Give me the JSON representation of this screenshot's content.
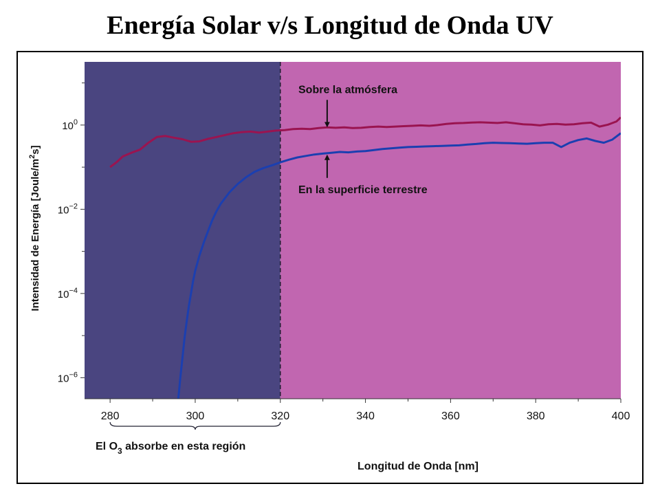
{
  "page": {
    "title": "Energía Solar v/s Longitud de Onda UV"
  },
  "chart_data": {
    "type": "line",
    "title": "Energía Solar v/s Longitud de Onda UV",
    "xlabel": "Longitud de Onda [nm]",
    "ylabel": {
      "prefix": "Intensidad de Energía [Joule/m",
      "sup": "2",
      "suffix": "s]"
    },
    "xlim": [
      274,
      400
    ],
    "ylim_log10": [
      -6.5,
      1.5
    ],
    "y_scale": "log",
    "grid": false,
    "x_ticks": [
      280,
      300,
      320,
      340,
      360,
      380,
      400
    ],
    "y_ticks": [
      {
        "base": "10",
        "exp": "0",
        "log10": 0
      },
      {
        "base": "10",
        "exp": "−2",
        "log10": -2
      },
      {
        "base": "10",
        "exp": "−4",
        "log10": -4
      },
      {
        "base": "10",
        "exp": "−6",
        "log10": -6
      }
    ],
    "regions": [
      {
        "from": 274,
        "to": 320,
        "color": "#4a4580"
      },
      {
        "from": 320,
        "to": 400,
        "color": "#c166b0"
      }
    ],
    "divider_x": 320,
    "series": [
      {
        "color": "#9a1450",
        "x": [
          280,
          281.5,
          283,
          285,
          287,
          289,
          291,
          293,
          295,
          297,
          299,
          301,
          303,
          305,
          307,
          309,
          311,
          313,
          315,
          317,
          319,
          321,
          323,
          325,
          327,
          329,
          331,
          333,
          335,
          337,
          339,
          341,
          343,
          345,
          347,
          349,
          351,
          353,
          355,
          357,
          359,
          361,
          363,
          365,
          367,
          369,
          371,
          373,
          375,
          377,
          379,
          381,
          383,
          385,
          387,
          389,
          391,
          393,
          395,
          397,
          399,
          400
        ],
        "y": [
          0.1,
          0.13,
          0.18,
          0.22,
          0.26,
          0.38,
          0.52,
          0.55,
          0.5,
          0.46,
          0.4,
          0.41,
          0.47,
          0.52,
          0.58,
          0.64,
          0.68,
          0.7,
          0.66,
          0.7,
          0.74,
          0.76,
          0.8,
          0.82,
          0.8,
          0.85,
          0.88,
          0.86,
          0.88,
          0.85,
          0.86,
          0.9,
          0.92,
          0.9,
          0.92,
          0.94,
          0.96,
          0.98,
          0.96,
          1.0,
          1.06,
          1.1,
          1.12,
          1.15,
          1.16,
          1.14,
          1.12,
          1.16,
          1.1,
          1.04,
          1.02,
          0.98,
          1.04,
          1.06,
          1.02,
          1.04,
          1.1,
          1.14,
          0.92,
          1.02,
          1.22,
          1.52
        ]
      },
      {
        "color": "#1b3fb0",
        "x": [
          296,
          296.5,
          297,
          297.5,
          298,
          298.5,
          299,
          299.5,
          300,
          301,
          302,
          303,
          304,
          305,
          306,
          308,
          310,
          312,
          314,
          316,
          318,
          320,
          322,
          324,
          326,
          328,
          330,
          332,
          334,
          336,
          338,
          340,
          342,
          344,
          346,
          348,
          350,
          352,
          354,
          356,
          358,
          360,
          362,
          364,
          366,
          368,
          370,
          372,
          374,
          376,
          378,
          380,
          382,
          384,
          386,
          388,
          390,
          392,
          394,
          396,
          398,
          400
        ],
        "y": [
          3e-07,
          1e-06,
          3e-06,
          9e-06,
          2.2e-05,
          5e-05,
          0.0001,
          0.0002,
          0.00035,
          0.0008,
          0.0016,
          0.003,
          0.0055,
          0.009,
          0.0135,
          0.025,
          0.04,
          0.058,
          0.078,
          0.095,
          0.11,
          0.13,
          0.15,
          0.17,
          0.185,
          0.2,
          0.21,
          0.22,
          0.23,
          0.225,
          0.235,
          0.24,
          0.255,
          0.27,
          0.28,
          0.29,
          0.3,
          0.305,
          0.31,
          0.315,
          0.32,
          0.325,
          0.33,
          0.345,
          0.355,
          0.37,
          0.38,
          0.375,
          0.37,
          0.365,
          0.36,
          0.37,
          0.38,
          0.38,
          0.3,
          0.38,
          0.44,
          0.48,
          0.42,
          0.38,
          0.45,
          0.64
        ]
      }
    ],
    "annotations": [
      {
        "text": "Sobre la atmósfera",
        "x": 331,
        "arrow_to_series": 0
      },
      {
        "text": "En la superficie terrestre",
        "x": 331,
        "arrow_to_series": 1
      }
    ],
    "bracket": {
      "from": 280,
      "to": 320,
      "label": {
        "prefix": "El O",
        "sub": "3",
        "suffix": " absorbe en esta región"
      }
    }
  }
}
